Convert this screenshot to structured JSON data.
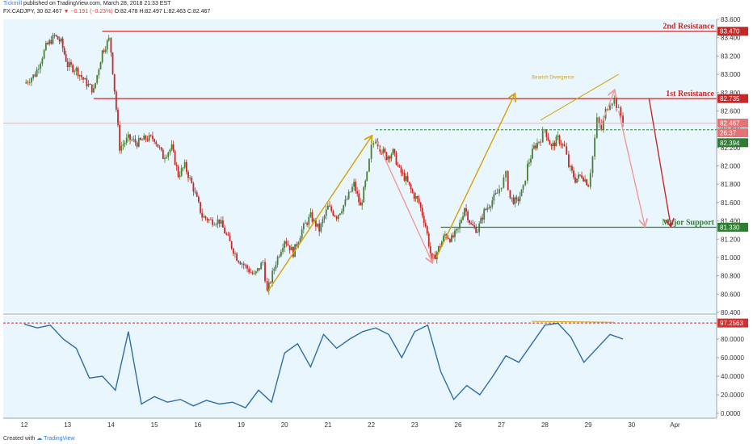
{
  "header": {
    "author": "Tickmill",
    "published": "published on TradingView.com, March 28, 2018 21:33 EST",
    "symbol": "FX:CADJPY, 30",
    "last": "82.467",
    "change": "▼ −0.191 (−0.23%)",
    "ohlc": "O:82.478 H:82.497 L:82.463 C:82.467"
  },
  "footer": {
    "created_with": "Created with",
    "brand": "TradingView"
  },
  "colors": {
    "background": "#e9f6fd",
    "candle_up": "#4b7d3b",
    "candle_down": "#c62828",
    "resistance": "#c62828",
    "support": "#2e7d32",
    "rsi_line": "#2f6ea8",
    "arrow_gold": "#d4a20a",
    "arrow_pink": "#ef9a9a",
    "arrow_red": "#c62828"
  },
  "chart_data": [
    {
      "type": "candlestick",
      "ylim": [
        80.4,
        83.6
      ],
      "y_ticks": [
        "80.400",
        "80.600",
        "80.800",
        "81.000",
        "81.200",
        "81.400",
        "81.600",
        "81.800",
        "82.000",
        "82.200",
        "82.400",
        "82.600",
        "82.800",
        "83.000",
        "83.200",
        "83.400",
        "83.600"
      ],
      "x_ticks": [
        "12",
        "13",
        "14",
        "15",
        "16",
        "19",
        "20",
        "21",
        "22",
        "23",
        "26",
        "27",
        "28",
        "29",
        "30",
        "Apr"
      ],
      "close_path": [
        [
          0,
          82.9
        ],
        [
          0.25,
          83.0
        ],
        [
          0.5,
          83.3
        ],
        [
          0.7,
          83.42
        ],
        [
          0.85,
          83.35
        ],
        [
          1.0,
          83.1
        ],
        [
          1.2,
          83.05
        ],
        [
          1.4,
          82.92
        ],
        [
          1.6,
          82.82
        ],
        [
          1.8,
          83.25
        ],
        [
          1.95,
          83.38
        ],
        [
          2.0,
          83.25
        ],
        [
          2.2,
          82.2
        ],
        [
          2.4,
          82.3
        ],
        [
          2.6,
          82.25
        ],
        [
          2.8,
          82.3
        ],
        [
          3.0,
          82.3
        ],
        [
          3.2,
          82.1
        ],
        [
          3.4,
          82.2
        ],
        [
          3.55,
          81.9
        ],
        [
          3.7,
          82.0
        ],
        [
          3.9,
          81.75
        ],
        [
          4.1,
          81.45
        ],
        [
          4.3,
          81.4
        ],
        [
          4.5,
          81.4
        ],
        [
          4.7,
          81.2
        ],
        [
          4.9,
          81.0
        ],
        [
          5.1,
          80.9
        ],
        [
          5.3,
          80.8
        ],
        [
          5.5,
          80.95
        ],
        [
          5.6,
          80.62
        ],
        [
          5.8,
          80.95
        ],
        [
          6.0,
          81.2
        ],
        [
          6.2,
          81.05
        ],
        [
          6.4,
          81.3
        ],
        [
          6.6,
          81.45
        ],
        [
          6.8,
          81.3
        ],
        [
          7.0,
          81.55
        ],
        [
          7.2,
          81.45
        ],
        [
          7.4,
          81.6
        ],
        [
          7.6,
          81.8
        ],
        [
          7.75,
          81.55
        ],
        [
          7.9,
          81.9
        ],
        [
          8.0,
          82.2
        ],
        [
          8.1,
          82.3
        ],
        [
          8.2,
          82.2
        ],
        [
          8.35,
          82.1
        ],
        [
          8.5,
          82.15
        ],
        [
          8.65,
          81.95
        ],
        [
          8.8,
          81.85
        ],
        [
          8.95,
          81.7
        ],
        [
          9.1,
          81.6
        ],
        [
          9.25,
          81.35
        ],
        [
          9.4,
          80.95
        ],
        [
          9.55,
          81.1
        ],
        [
          9.7,
          81.25
        ],
        [
          9.85,
          81.2
        ],
        [
          10.0,
          81.3
        ],
        [
          10.15,
          81.55
        ],
        [
          10.3,
          81.35
        ],
        [
          10.45,
          81.3
        ],
        [
          10.6,
          81.5
        ],
        [
          10.75,
          81.6
        ],
        [
          10.9,
          81.7
        ],
        [
          11.0,
          81.8
        ],
        [
          11.1,
          81.9
        ],
        [
          11.2,
          81.65
        ],
        [
          11.35,
          81.6
        ],
        [
          11.5,
          81.75
        ],
        [
          11.6,
          82.0
        ],
        [
          11.75,
          82.2
        ],
        [
          11.9,
          82.3
        ],
        [
          12.0,
          82.4
        ],
        [
          12.15,
          82.2
        ],
        [
          12.3,
          82.3
        ],
        [
          12.45,
          82.2
        ],
        [
          12.55,
          82.0
        ],
        [
          12.7,
          81.85
        ],
        [
          12.85,
          81.9
        ],
        [
          13.0,
          81.8
        ],
        [
          13.1,
          82.1
        ],
        [
          13.2,
          82.5
        ],
        [
          13.3,
          82.4
        ],
        [
          13.4,
          82.6
        ],
        [
          13.5,
          82.7
        ],
        [
          13.6,
          82.73
        ],
        [
          13.7,
          82.6
        ],
        [
          13.8,
          82.5
        ]
      ],
      "annotations": [
        {
          "label": "2nd Resistance",
          "value": 83.47,
          "value_label": "83.470"
        },
        {
          "label": "1st Resistance",
          "value": 82.735,
          "value_label": "82.735"
        },
        {
          "label": "Major Support",
          "value": 81.33,
          "value_label": "81.330"
        }
      ],
      "dashed_level": {
        "value": 82.394,
        "value_label": "82.394"
      },
      "last_price": {
        "value": 82.467,
        "value_label": "82.467",
        "countdown": "26:37"
      },
      "divergence_label": "Bearish Divergence"
    },
    {
      "type": "line",
      "indicator": "oscillator",
      "ylim": [
        0,
        100
      ],
      "y_ticks": [
        "0.0000",
        "20.0000",
        "40.0000",
        "60.0000",
        "80.0000"
      ],
      "level": {
        "value": 97.2563,
        "value_label": "97.2563"
      },
      "x": [
        0,
        0.3,
        0.6,
        0.9,
        1.2,
        1.5,
        1.8,
        2.1,
        2.4,
        2.7,
        3.0,
        3.3,
        3.6,
        3.9,
        4.2,
        4.5,
        4.8,
        5.1,
        5.4,
        5.7,
        6.0,
        6.3,
        6.6,
        6.9,
        7.2,
        7.5,
        7.8,
        8.1,
        8.4,
        8.7,
        9.0,
        9.3,
        9.6,
        9.9,
        10.2,
        10.5,
        10.8,
        11.1,
        11.4,
        11.7,
        12.0,
        12.3,
        12.6,
        12.9,
        13.2,
        13.5,
        13.8
      ],
      "values": [
        96,
        92,
        95,
        80,
        70,
        38,
        40,
        25,
        88,
        10,
        18,
        12,
        15,
        8,
        14,
        10,
        12,
        6,
        25,
        12,
        65,
        75,
        50,
        85,
        70,
        80,
        88,
        92,
        85,
        60,
        88,
        95,
        45,
        15,
        30,
        20,
        40,
        62,
        55,
        75,
        95,
        97,
        82,
        55,
        70,
        85,
        80
      ]
    }
  ]
}
